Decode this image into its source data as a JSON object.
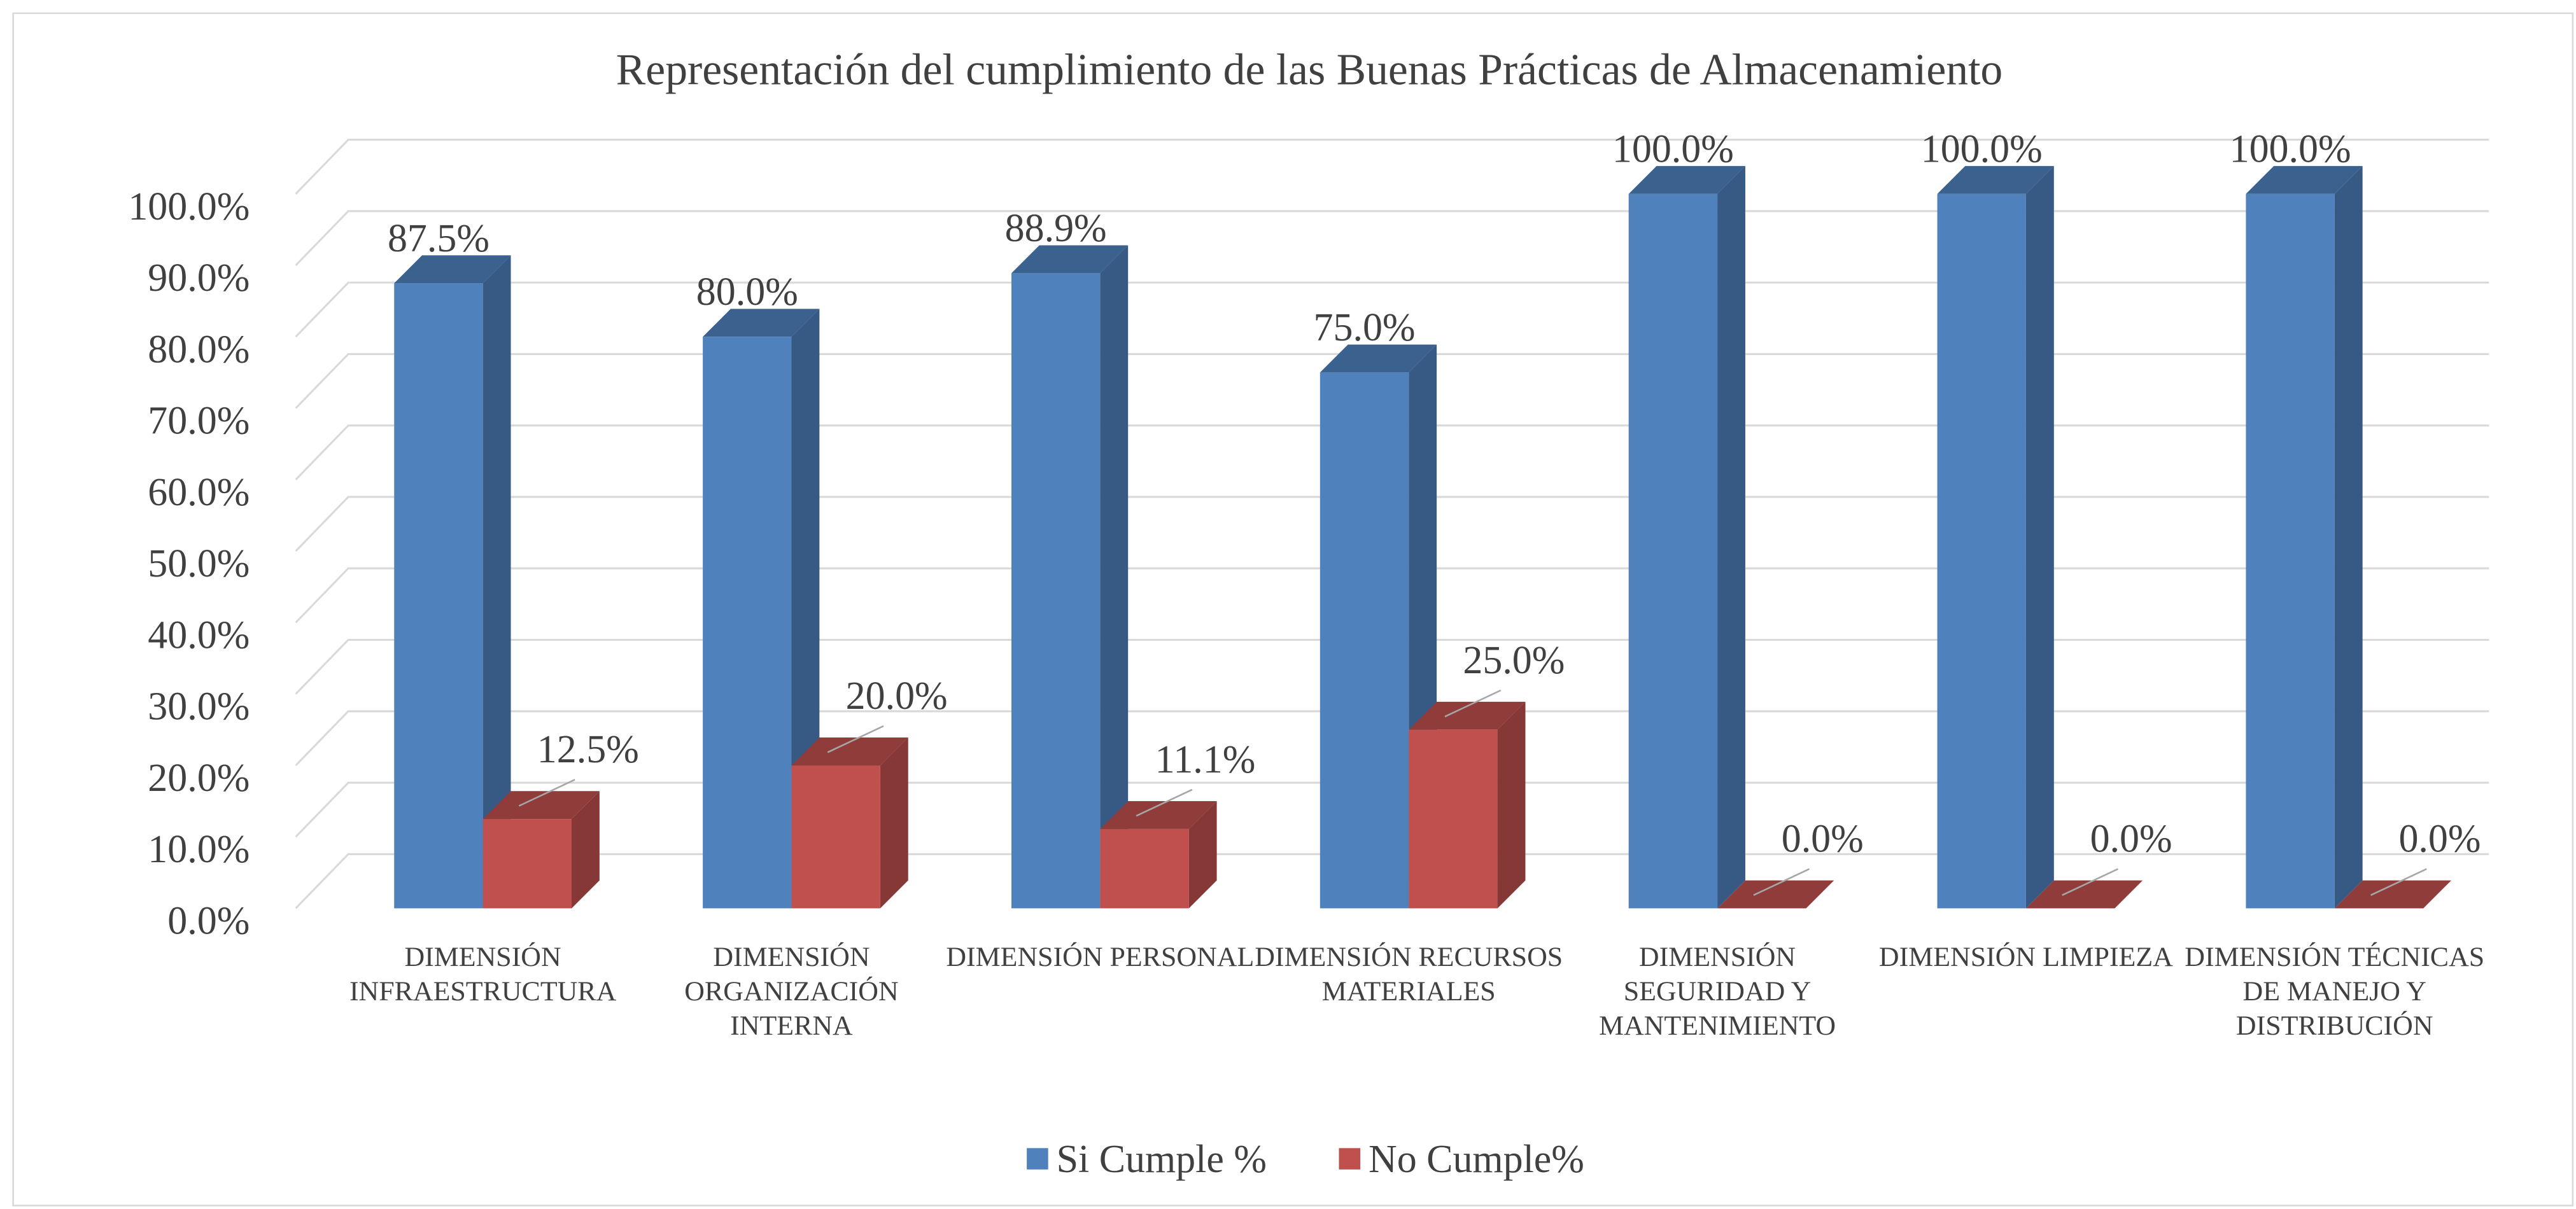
{
  "chart_data": {
    "type": "bar",
    "three_d": true,
    "title": "Representación del cumplimiento de las Buenas Prácticas de Almacenamiento",
    "categories": [
      "DIMENSIÓN INFRAESTRUCTURA",
      "DIMENSIÓN ORGANIZACIÓN INTERNA",
      "DIMENSIÓN PERSONAL",
      "DIMENSIÓN RECURSOS MATERIALES",
      "DIMENSIÓN SEGURIDAD Y MANTENIMIENTO",
      "DIMENSIÓN LIMPIEZA",
      "DIMENSIÓN TÉCNICAS DE MANEJO Y DISTRIBUCIÓN"
    ],
    "series": [
      {
        "name": "Si Cumple %",
        "color": "#4f81bd",
        "values": [
          87.5,
          80.0,
          88.9,
          75.0,
          100.0,
          100.0,
          100.0
        ],
        "value_labels": [
          "87.5%",
          "80.0%",
          "88.9%",
          "75.0%",
          "100.0%",
          "100.0%",
          "100.0%"
        ]
      },
      {
        "name": "No Cumple%",
        "color": "#c0504d",
        "values": [
          12.5,
          20.0,
          11.1,
          25.0,
          0.0,
          0.0,
          0.0
        ],
        "value_labels": [
          "12.5%",
          "20.0%",
          "11.1%",
          "25.0%",
          "0.0%",
          "0.0%",
          "0.0%"
        ]
      }
    ],
    "ylim": [
      0,
      100
    ],
    "yticks": [
      {
        "value": 0,
        "label": "0.0%"
      },
      {
        "value": 10,
        "label": "10.0%"
      },
      {
        "value": 20,
        "label": "20.0%"
      },
      {
        "value": 30,
        "label": "30.0%"
      },
      {
        "value": 40,
        "label": "40.0%"
      },
      {
        "value": 50,
        "label": "50.0%"
      },
      {
        "value": 60,
        "label": "60.0%"
      },
      {
        "value": 70,
        "label": "70.0%"
      },
      {
        "value": 80,
        "label": "80.0%"
      },
      {
        "value": 90,
        "label": "90.0%"
      },
      {
        "value": 100,
        "label": "100.0%"
      }
    ],
    "grid": true,
    "legend": "bottom"
  }
}
